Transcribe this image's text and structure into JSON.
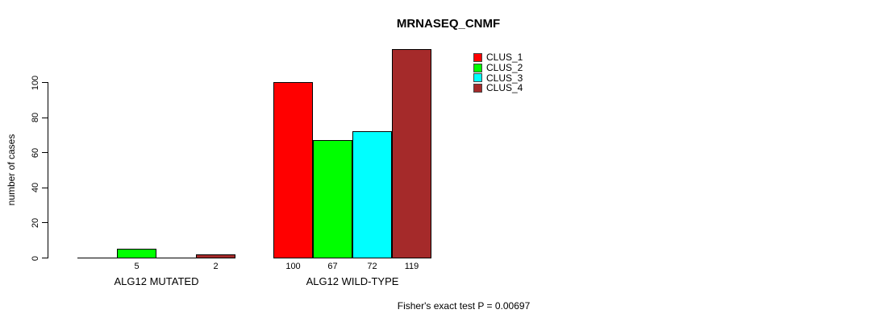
{
  "chart_data": {
    "type": "bar",
    "title": "MRNASEQ_CNMF",
    "ylabel": "number of cases",
    "xlabel": "",
    "categories": [
      "ALG12 MUTATED",
      "ALG12 WILD-TYPE"
    ],
    "series": [
      {
        "name": "CLUS_1",
        "color": "#FF0000",
        "values": [
          0,
          100
        ]
      },
      {
        "name": "CLUS_2",
        "color": "#00FF00",
        "values": [
          5,
          67
        ]
      },
      {
        "name": "CLUS_3",
        "color": "#00FFFF",
        "values": [
          0,
          72
        ]
      },
      {
        "name": "CLUS_4",
        "color": "#A52A2A",
        "values": [
          2,
          119
        ]
      }
    ],
    "yticks": [
      0,
      20,
      40,
      60,
      80,
      100
    ],
    "ylim": [
      0,
      120
    ],
    "grid": false,
    "legend_position": "top-right",
    "bar_value_labels": {
      "ALG12 MUTATED": [
        null,
        5,
        null,
        2
      ],
      "ALG12 WILD-TYPE": [
        100,
        67,
        72,
        119
      ]
    },
    "annotation": "Fisher's exact test P = 0.00697"
  }
}
